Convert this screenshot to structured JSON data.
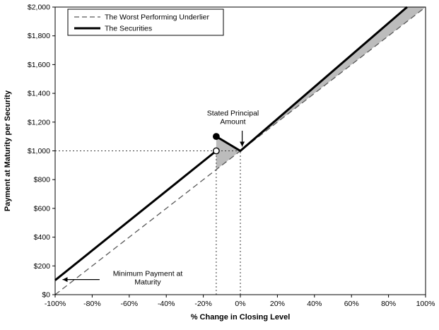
{
  "chart_data": {
    "type": "line",
    "title": "",
    "xlabel": "% Change in Closing Level",
    "ylabel": "Payment at Maturity per Security",
    "xlim": [
      -100,
      100
    ],
    "ylim": [
      0,
      2000
    ],
    "grid": false,
    "xlim_note": "x in percent change, y in dollars",
    "x_ticks": [
      -100,
      -80,
      -60,
      -40,
      -20,
      0,
      20,
      40,
      60,
      80,
      100
    ],
    "x_tick_labels": [
      "-100%",
      "-80%",
      "-60%",
      "-40%",
      "-20%",
      "0%",
      "20%",
      "40%",
      "60%",
      "80%",
      "100%"
    ],
    "y_ticks": [
      0,
      200,
      400,
      600,
      800,
      1000,
      1200,
      1400,
      1600,
      1800,
      2000
    ],
    "y_tick_labels": [
      "$0",
      "$200",
      "$400",
      "$600",
      "$800",
      "$1,000",
      "$1,200",
      "$1,400",
      "$1,600",
      "$1,800",
      "$2,000"
    ],
    "legend": {
      "position": "top-left",
      "entries": [
        {
          "label": "The Worst Performing Underlier",
          "style": "dashed",
          "color": "#595959"
        },
        {
          "label": "The Securities",
          "style": "solid",
          "color": "#000000"
        }
      ]
    },
    "series": [
      {
        "name": "The Worst Performing Underlier",
        "style": "dashed",
        "color": "#595959",
        "width": 1.3,
        "points": [
          [
            -100,
            0
          ],
          [
            100,
            2000
          ]
        ]
      },
      {
        "name": "The Securities",
        "style": "solid",
        "color": "#000000",
        "width": 3,
        "segments": [
          [
            [
              -100,
              100
            ],
            [
              -13,
              1000
            ]
          ],
          [
            [
              -13,
              1100
            ],
            [
              0,
              1000
            ],
            [
              90,
              2000
            ]
          ]
        ]
      }
    ],
    "markers": [
      {
        "x": -13,
        "y": 1000,
        "kind": "open",
        "color": "#000000"
      },
      {
        "x": -13,
        "y": 1100,
        "kind": "filled",
        "color": "#000000"
      }
    ],
    "shaded_region": {
      "color": "#b5b5b5",
      "opacity": 0.9,
      "polygon": [
        [
          -13,
          1100
        ],
        [
          0,
          1000
        ],
        [
          90,
          2000
        ],
        [
          100,
          2000
        ],
        [
          -13,
          870
        ]
      ]
    },
    "reference_lines": [
      {
        "kind": "horizontal",
        "y": 1000,
        "x_from": -100,
        "x_to": 0
      },
      {
        "kind": "vertical",
        "x": -13,
        "y_from": 0,
        "y_to": 1000
      },
      {
        "kind": "vertical",
        "x": 0,
        "y_from": 0,
        "y_to": 1000
      }
    ],
    "annotations": [
      {
        "id": "stated-principal",
        "lines": [
          "Stated Principal",
          "Amount"
        ],
        "x": -4,
        "y": 1245,
        "arrow": {
          "from": [
            1,
            1140
          ],
          "to": [
            1,
            1030
          ]
        }
      },
      {
        "id": "minimum-payment",
        "lines": [
          "Minimum Payment at",
          "Maturity"
        ],
        "x": -50,
        "y": 130,
        "arrow": {
          "from": [
            -76,
            105
          ],
          "to": [
            -96,
            105
          ]
        }
      }
    ],
    "key_values": {
      "stated_principal_amount": 1000,
      "minimum_payment_at_maturity": 100,
      "trigger_change_pct": -13,
      "payment_at_trigger": 1100,
      "securities_reach_cap_at_pct": 90
    }
  }
}
